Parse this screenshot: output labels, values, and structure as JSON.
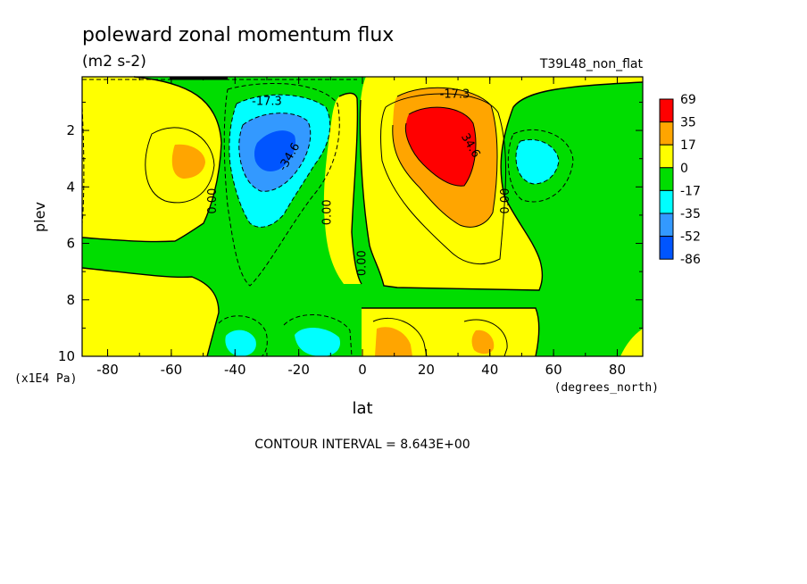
{
  "chart_data": {
    "type": "heatmap",
    "title": "poleward zonal momentum flux",
    "units": "(m2 s-2)",
    "run_label": "T39L48_non_flat",
    "xlabel": "lat",
    "x_units": "(degrees_north)",
    "ylabel": "plev",
    "y_units": "(x1E4 Pa)",
    "xlim": [
      -88,
      88
    ],
    "ylim": [
      10,
      0.1
    ],
    "x_ticks": [
      "-80",
      "-60",
      "-40",
      "-20",
      "0",
      "20",
      "40",
      "60",
      "80"
    ],
    "x_tick_values": [
      -80,
      -60,
      -40,
      -20,
      0,
      20,
      40,
      60,
      80
    ],
    "y_ticks": [
      "2",
      "4",
      "6",
      "8",
      "10"
    ],
    "y_tick_values": [
      2,
      4,
      6,
      8,
      10
    ],
    "contour_interval_text": "CONTOUR INTERVAL = 8.643E+00",
    "colorbar": {
      "labels": [
        "69",
        "35",
        "17",
        "0",
        "-17",
        "-35",
        "-52",
        "-86"
      ],
      "colors": [
        "#ff0000",
        "#ffa500",
        "#ffff00",
        "#00dd00",
        "#00ffff",
        "#3399ff",
        "#0055ff"
      ]
    },
    "contour_labels": [
      {
        "text": "-17.3",
        "lat": -30,
        "plev": 1.1
      },
      {
        "text": "-34.6",
        "lat": -22,
        "plev": 3.0
      },
      {
        "text": "-17.3",
        "lat": 29,
        "plev": 0.85
      },
      {
        "text": "34.6",
        "lat": 33,
        "plev": 2.6
      },
      {
        "text": "0.00",
        "lat": -46,
        "plev": 4.5
      },
      {
        "text": "0.00",
        "lat": -10,
        "plev": 4.9
      },
      {
        "text": "0.00",
        "lat": 1,
        "plev": 6.7
      },
      {
        "text": "0.00",
        "lat": 46,
        "plev": 4.5
      }
    ],
    "features": [
      {
        "sign": "negative",
        "lat": -28,
        "plev": 2.5,
        "level": 4
      },
      {
        "sign": "positive",
        "lat": 27,
        "plev": 2.5,
        "level": 4
      },
      {
        "sign": "positive",
        "lat": -55,
        "plev": 3.0,
        "level": 2
      },
      {
        "sign": "negative",
        "lat": 55,
        "plev": 3.0,
        "level": 2
      },
      {
        "sign": "negative",
        "lat": -38,
        "plev": 9.4,
        "level": 2
      },
      {
        "sign": "negative",
        "lat": -13,
        "plev": 9.4,
        "level": 2
      },
      {
        "sign": "positive",
        "lat": 10,
        "plev": 9.4,
        "level": 2
      },
      {
        "sign": "positive",
        "lat": 38,
        "plev": 9.4,
        "level": 2
      }
    ]
  }
}
